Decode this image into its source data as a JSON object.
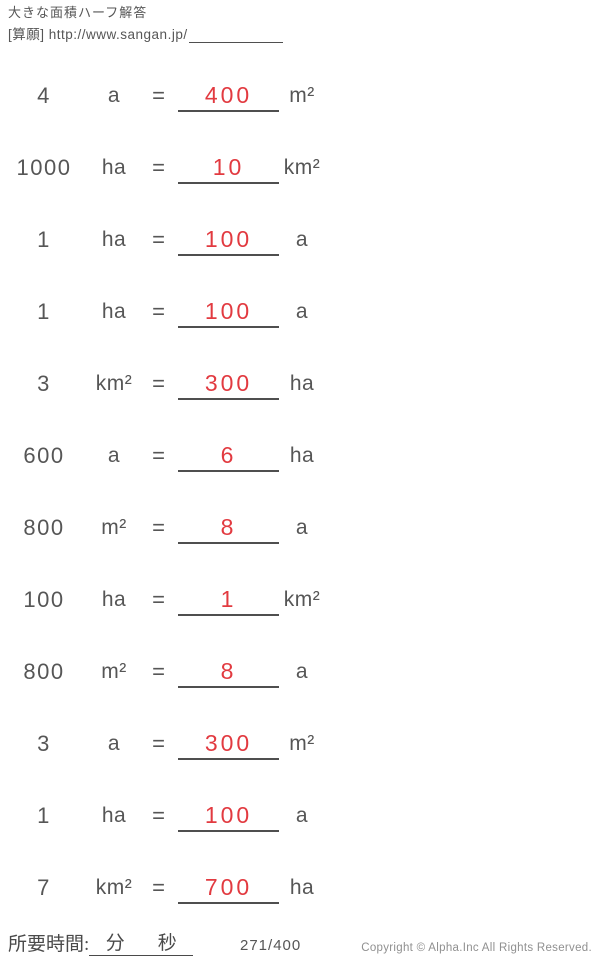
{
  "header": {
    "title": "大きな面積ハーフ解答",
    "source_label": "[算願] http://www.sangan.jp/"
  },
  "equals_sign": "=",
  "rows": [
    {
      "value": "4",
      "from_unit": "a",
      "answer": "400",
      "to_unit": "m²"
    },
    {
      "value": "1000",
      "from_unit": "ha",
      "answer": "10",
      "to_unit": "km²"
    },
    {
      "value": "1",
      "from_unit": "ha",
      "answer": "100",
      "to_unit": "a"
    },
    {
      "value": "1",
      "from_unit": "ha",
      "answer": "100",
      "to_unit": "a"
    },
    {
      "value": "3",
      "from_unit": "km²",
      "answer": "300",
      "to_unit": "ha"
    },
    {
      "value": "600",
      "from_unit": "a",
      "answer": "6",
      "to_unit": "ha"
    },
    {
      "value": "800",
      "from_unit": "m²",
      "answer": "8",
      "to_unit": "a"
    },
    {
      "value": "100",
      "from_unit": "ha",
      "answer": "1",
      "to_unit": "km²"
    },
    {
      "value": "800",
      "from_unit": "m²",
      "answer": "8",
      "to_unit": "a"
    },
    {
      "value": "3",
      "from_unit": "a",
      "answer": "300",
      "to_unit": "m²"
    },
    {
      "value": "1",
      "from_unit": "ha",
      "answer": "100",
      "to_unit": "a"
    },
    {
      "value": "7",
      "from_unit": "km²",
      "answer": "700",
      "to_unit": "ha"
    }
  ],
  "footer": {
    "time_label": "所要時間:",
    "minutes_label": "分",
    "seconds_label": "秒",
    "page_indicator": "271/400",
    "copyright": "Copyright © Alpha.Inc All Rights Reserved."
  },
  "colors": {
    "text": "#565656",
    "answer_red": "#e23a40",
    "line": "#4f4f4f",
    "copyright_gray": "#909090"
  }
}
